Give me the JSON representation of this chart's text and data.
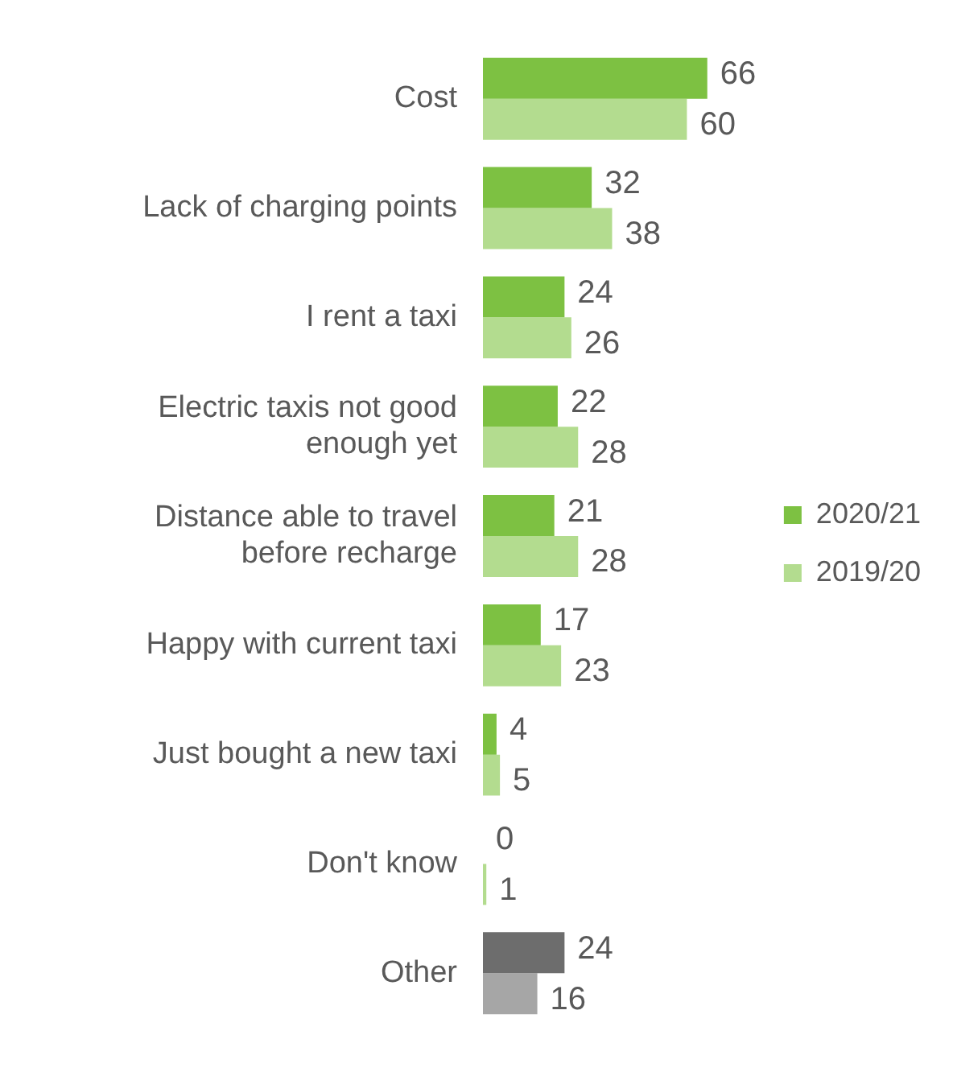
{
  "chart_data": {
    "type": "bar",
    "orientation": "horizontal",
    "categories": [
      "Cost",
      "Lack of charging points",
      "I rent a taxi",
      "Electric taxis not good enough yet",
      "Distance able to travel before recharge",
      "Happy with current taxi",
      "Just bought a new taxi",
      "Don't know",
      "Other"
    ],
    "series": [
      {
        "name": "2020/21",
        "color": "#7dc142",
        "colors": [
          "#7dc142",
          "#7dc142",
          "#7dc142",
          "#7dc142",
          "#7dc142",
          "#7dc142",
          "#7dc142",
          "#7dc142",
          "#6d6d6d"
        ],
        "values": [
          66,
          32,
          24,
          22,
          21,
          17,
          4,
          0,
          24
        ]
      },
      {
        "name": "2019/20",
        "color": "#b3dc8f",
        "colors": [
          "#b3dc8f",
          "#b3dc8f",
          "#b3dc8f",
          "#b3dc8f",
          "#b3dc8f",
          "#b3dc8f",
          "#b3dc8f",
          "#b3dc8f",
          "#a6a6a6"
        ],
        "values": [
          60,
          38,
          26,
          28,
          28,
          23,
          5,
          1,
          16
        ]
      }
    ],
    "data_labels": true,
    "legend": "right",
    "grid": false,
    "tick_labels": "y"
  }
}
